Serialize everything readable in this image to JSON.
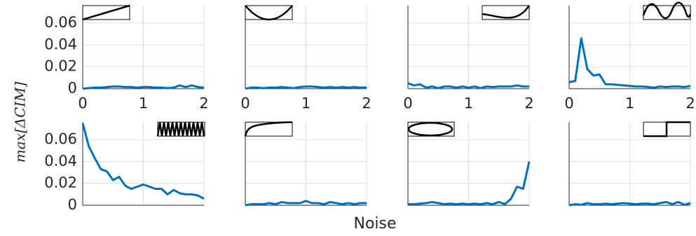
{
  "chart_data": [
    {
      "type": "line",
      "ylabel": "max[ΔCIM]",
      "x": [
        0,
        0.1,
        0.2,
        0.3,
        0.4,
        0.5,
        0.6,
        0.7,
        0.8,
        0.9,
        1,
        1.1,
        1.2,
        1.3,
        1.4,
        1.5,
        1.6,
        1.7,
        1.8,
        1.9,
        2
      ],
      "series": [
        {
          "color": "#0072bd",
          "values": [
            0,
            0.0005,
            0.001,
            0.001,
            0.0015,
            0.002,
            0.002,
            0.0015,
            0.0015,
            0.001,
            0.0015,
            0.0015,
            0.001,
            0.001,
            0.0005,
            0.001,
            0.003,
            0.0015,
            0.003,
            0.0015,
            0.001
          ]
        }
      ],
      "xlim": [
        0,
        2
      ],
      "xticks": [
        0,
        1,
        2
      ],
      "ylim": [
        0,
        0.076
      ],
      "yticks": [
        0,
        0.02,
        0.04,
        0.06
      ],
      "grid": true
    },
    {
      "type": "line",
      "x": [
        0,
        0.1,
        0.2,
        0.3,
        0.4,
        0.5,
        0.6,
        0.7,
        0.8,
        0.9,
        1,
        1.1,
        1.2,
        1.3,
        1.4,
        1.5,
        1.6,
        1.7,
        1.8,
        1.9,
        2
      ],
      "series": [
        {
          "color": "#0072bd",
          "values": [
            0,
            0.001,
            0.001,
            0.0005,
            0.001,
            0.001,
            0.0015,
            0.001,
            0.0005,
            0.0015,
            0.002,
            0.002,
            0.0015,
            0.001,
            0.0015,
            0.001,
            0.0015,
            0.001,
            0.0015,
            0.001,
            0.001
          ]
        }
      ],
      "xlim": [
        0,
        2
      ],
      "xticks": [
        0,
        1,
        2
      ],
      "ylim": [
        0,
        0.076
      ],
      "yticks": [
        0,
        0.02,
        0.04,
        0.06
      ],
      "grid": true
    },
    {
      "type": "line",
      "x": [
        0,
        0.1,
        0.2,
        0.3,
        0.4,
        0.5,
        0.6,
        0.7,
        0.8,
        0.9,
        1,
        1.1,
        1.2,
        1.3,
        1.4,
        1.5,
        1.6,
        1.7,
        1.8,
        1.9,
        2
      ],
      "series": [
        {
          "color": "#0072bd",
          "values": [
            0.005,
            0.003,
            0.004,
            0.001,
            0.002,
            0.0005,
            0.002,
            0.002,
            0.001,
            0.002,
            0.001,
            0.002,
            0.0005,
            0.002,
            0.0015,
            0.002,
            0.002,
            0.002,
            0.003,
            0.002,
            0.002
          ]
        }
      ],
      "xlim": [
        0,
        2
      ],
      "xticks": [
        0,
        1,
        2
      ],
      "ylim": [
        0,
        0.076
      ],
      "yticks": [
        0,
        0.02,
        0.04,
        0.06
      ],
      "grid": true
    },
    {
      "type": "line",
      "x": [
        0,
        0.1,
        0.2,
        0.3,
        0.4,
        0.5,
        0.6,
        0.7,
        0.8,
        0.9,
        1,
        1.1,
        1.2,
        1.3,
        1.4,
        1.5,
        1.6,
        1.7,
        1.8,
        1.9,
        2
      ],
      "series": [
        {
          "color": "#0072bd",
          "values": [
            0.006,
            0.007,
            0.046,
            0.018,
            0.012,
            0.013,
            0.004,
            0.004,
            0.0035,
            0.003,
            0.0025,
            0.002,
            0.002,
            0.0015,
            0.001,
            0.002,
            0.0015,
            0.002,
            0.002,
            0.0015,
            0.0025
          ]
        }
      ],
      "xlim": [
        0,
        2
      ],
      "xticks": [
        0,
        1,
        2
      ],
      "ylim": [
        0,
        0.076
      ],
      "yticks": [
        0,
        0.02,
        0.04,
        0.06
      ],
      "grid": true
    },
    {
      "type": "line",
      "x": [
        0,
        0.1,
        0.2,
        0.3,
        0.4,
        0.5,
        0.6,
        0.7,
        0.8,
        0.9,
        1,
        1.1,
        1.2,
        1.3,
        1.4,
        1.5,
        1.6,
        1.7,
        1.8,
        1.9,
        2
      ],
      "series": [
        {
          "color": "#0072bd",
          "values": [
            0.075,
            0.054,
            0.043,
            0.033,
            0.031,
            0.023,
            0.026,
            0.018,
            0.015,
            0.017,
            0.019,
            0.017,
            0.015,
            0.015,
            0.01,
            0.014,
            0.011,
            0.01,
            0.01,
            0.009,
            0.006
          ]
        }
      ],
      "xlim": [
        0,
        2
      ],
      "xticks": [
        0,
        1,
        2
      ],
      "ylim": [
        0,
        0.076
      ],
      "yticks": [
        0,
        0.02,
        0.04,
        0.06
      ],
      "grid": true
    },
    {
      "type": "line",
      "xlabel": "Noise",
      "x": [
        0,
        0.1,
        0.2,
        0.3,
        0.4,
        0.5,
        0.6,
        0.7,
        0.8,
        0.9,
        1,
        1.1,
        1.2,
        1.3,
        1.4,
        1.5,
        1.6,
        1.7,
        1.8,
        1.9,
        2
      ],
      "series": [
        {
          "color": "#0072bd",
          "values": [
            0,
            0.001,
            0.001,
            0.001,
            0.002,
            0.001,
            0.003,
            0.002,
            0.002,
            0.002,
            0.004,
            0.002,
            0.002,
            0.001,
            0.003,
            0.002,
            0.001,
            0.002,
            0.001,
            0.002,
            0.002
          ]
        }
      ],
      "xlim": [
        0,
        2
      ],
      "xticks": [
        0,
        1,
        2
      ],
      "ylim": [
        0,
        0.076
      ],
      "yticks": [
        0,
        0.02,
        0.04,
        0.06
      ],
      "grid": true
    },
    {
      "type": "line",
      "x": [
        0,
        0.1,
        0.2,
        0.3,
        0.4,
        0.5,
        0.6,
        0.7,
        0.8,
        0.9,
        1,
        1.1,
        1.2,
        1.3,
        1.4,
        1.5,
        1.6,
        1.7,
        1.8,
        1.9,
        2
      ],
      "series": [
        {
          "color": "#0072bd",
          "values": [
            0.001,
            0.001,
            0.0015,
            0.002,
            0.003,
            0.002,
            0.001,
            0.0015,
            0.001,
            0.0015,
            0.001,
            0.0015,
            0.001,
            0.002,
            0.001,
            0.003,
            0.001,
            0.006,
            0.017,
            0.015,
            0.04
          ]
        }
      ],
      "xlim": [
        0,
        2
      ],
      "xticks": [
        0,
        1,
        2
      ],
      "ylim": [
        0,
        0.076
      ],
      "yticks": [
        0,
        0.02,
        0.04,
        0.06
      ],
      "grid": true
    },
    {
      "type": "line",
      "x": [
        0,
        0.1,
        0.2,
        0.3,
        0.4,
        0.5,
        0.6,
        0.7,
        0.8,
        0.9,
        1,
        1.1,
        1.2,
        1.3,
        1.4,
        1.5,
        1.6,
        1.7,
        1.8,
        1.9,
        2
      ],
      "series": [
        {
          "color": "#0072bd",
          "values": [
            0,
            0.001,
            0.0005,
            0.002,
            0.001,
            0.001,
            0.0015,
            0.001,
            0.0015,
            0.002,
            0.0015,
            0.001,
            0.0015,
            0.0015,
            0.001,
            0.002,
            0.003,
            0.001,
            0.003,
            0.0005,
            0.002
          ]
        }
      ],
      "xlim": [
        0,
        2
      ],
      "xticks": [
        0,
        1,
        2
      ],
      "ylim": [
        0,
        0.076
      ],
      "yticks": [
        0,
        0.02,
        0.04,
        0.06
      ],
      "grid": true
    }
  ]
}
